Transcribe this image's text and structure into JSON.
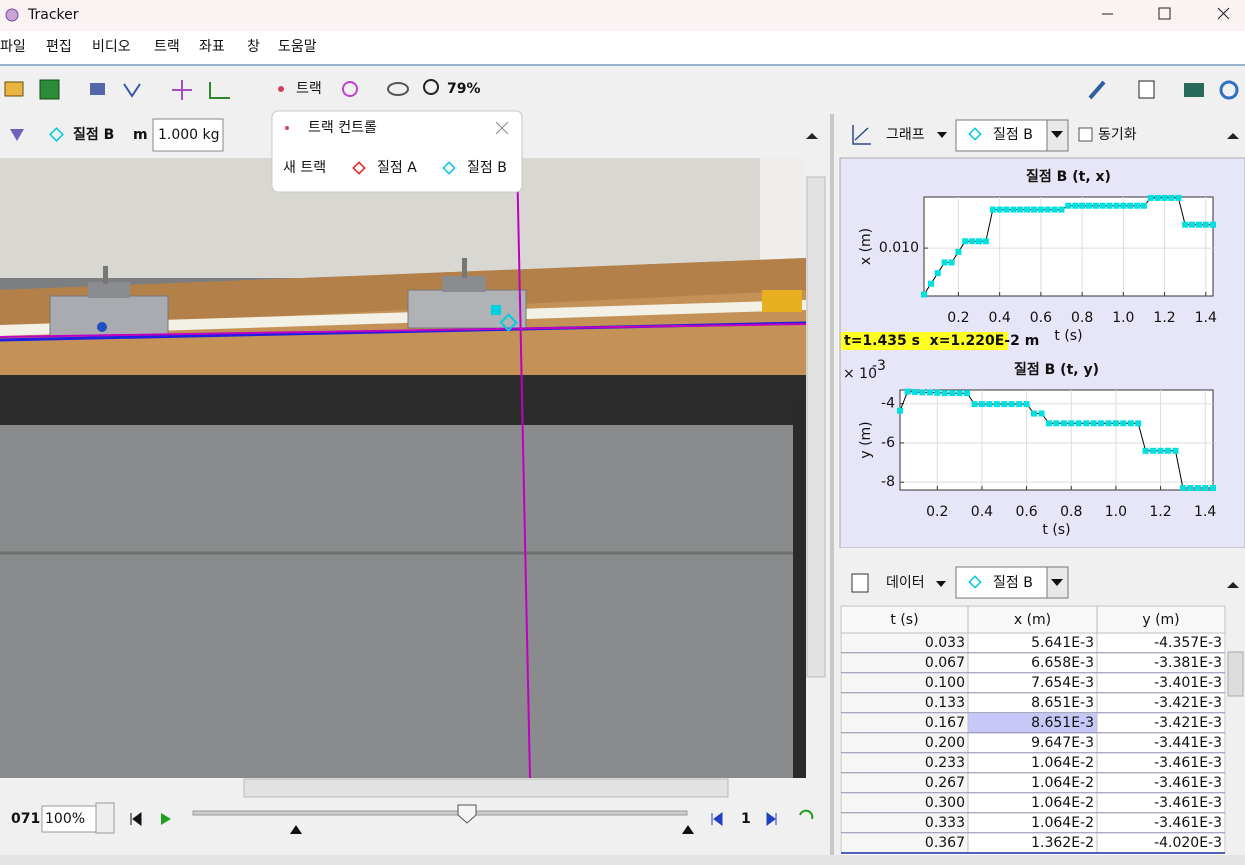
{
  "window": {
    "title": "Tracker"
  },
  "menu": [
    "파일",
    "편집",
    "비디오",
    "트랙",
    "좌표",
    "창",
    "도움말"
  ],
  "toolbar": {
    "track_button": "트랙",
    "zoom": "79%"
  },
  "track_bar": {
    "track": "질점 B",
    "mass_label": "m",
    "mass": "1.000 kg"
  },
  "track_control": {
    "title": "트랙 컨트롤",
    "new_track": "새 트랙",
    "tracks": [
      "질점 A",
      "질점 B"
    ]
  },
  "player": {
    "frame": "071",
    "rate": "100%",
    "step": "1"
  },
  "graph_panel": {
    "label": "그래프",
    "track": "질점 B",
    "sync": "동기화",
    "readout": "t=1.435 s  x=1.220E-2 m",
    "charts": [
      {
        "type": "line",
        "title": "질점 B (t, x)",
        "x_label": "t (s)",
        "y_label": "x (m)",
        "color": "#00e0e0",
        "t": [
          0.033,
          0.067,
          0.1,
          0.133,
          0.167,
          0.2,
          0.233,
          0.267,
          0.3,
          0.333,
          0.367,
          0.4,
          0.433,
          0.467,
          0.5,
          0.533,
          0.567,
          0.6,
          0.633,
          0.667,
          0.7,
          0.733,
          0.767,
          0.8,
          0.833,
          0.867,
          0.9,
          0.933,
          0.967,
          1.0,
          1.033,
          1.067,
          1.1,
          1.133,
          1.167,
          1.2,
          1.233,
          1.267,
          1.3,
          1.333,
          1.367,
          1.4,
          1.435
        ],
        "values": [
          0.005641,
          0.006658,
          0.007654,
          0.008651,
          0.008651,
          0.009647,
          0.01064,
          0.01064,
          0.01064,
          0.01064,
          0.01362,
          0.01362,
          0.01362,
          0.01362,
          0.01362,
          0.01362,
          0.01362,
          0.01362,
          0.01362,
          0.01362,
          0.01362,
          0.01398,
          0.01398,
          0.01398,
          0.01398,
          0.01398,
          0.01398,
          0.01398,
          0.01398,
          0.01398,
          0.01398,
          0.01398,
          0.01398,
          0.01471,
          0.01471,
          0.01471,
          0.01471,
          0.01471,
          0.0122,
          0.0122,
          0.0122,
          0.0122,
          0.0122
        ],
        "xlim": [
          0.033,
          1.435
        ],
        "ylim": [
          0.0055,
          0.0148
        ],
        "xticks": [
          0.2,
          0.4,
          0.6,
          0.8,
          {
            "value": 1,
            "label": "1.0"
          },
          1.2,
          1.4
        ],
        "yticks": [
          {
            "value": 0.01,
            "label": "0.010"
          }
        ],
        "grid": true
      },
      {
        "type": "line",
        "title": "질점 B (t, y)",
        "x_label": "t (s)",
        "y_label": "y (m)",
        "multiplier": "× 10",
        "exponent": "-3",
        "color": "#00e0e0",
        "t": [
          0.033,
          0.067,
          0.1,
          0.133,
          0.167,
          0.2,
          0.233,
          0.267,
          0.3,
          0.333,
          0.367,
          0.4,
          0.433,
          0.467,
          0.5,
          0.533,
          0.567,
          0.6,
          0.633,
          0.667,
          0.7,
          0.733,
          0.767,
          0.8,
          0.833,
          0.867,
          0.9,
          0.933,
          0.967,
          1.0,
          1.033,
          1.067,
          1.1,
          1.133,
          1.167,
          1.2,
          1.233,
          1.267,
          1.3,
          1.333,
          1.367,
          1.4,
          1.435
        ],
        "values": [
          -4.357,
          -3.381,
          -3.401,
          -3.421,
          -3.421,
          -3.441,
          -3.461,
          -3.461,
          -3.461,
          -3.461,
          -4.02,
          -4.02,
          -4.02,
          -4.02,
          -4.02,
          -4.02,
          -4.02,
          -4.02,
          -4.5,
          -4.5,
          -5.0,
          -5.0,
          -5.0,
          -5.0,
          -5.0,
          -5.0,
          -5.0,
          -5.0,
          -5.0,
          -5.0,
          -5.0,
          -5.0,
          -5.0,
          -6.4,
          -6.4,
          -6.4,
          -6.4,
          -6.4,
          -8.3,
          -8.3,
          -8.3,
          -8.3,
          -8.3
        ],
        "xlim": [
          0.033,
          1.435
        ],
        "ylim": [
          -8.4,
          -3.3
        ],
        "xticks": [
          0.2,
          0.4,
          0.6,
          0.8,
          {
            "value": 1,
            "label": "1.0"
          },
          1.2,
          1.4
        ],
        "yticks": [
          -4,
          -6,
          -8
        ],
        "grid": true
      }
    ]
  },
  "data_panel": {
    "label": "데이터",
    "track": "질점 B",
    "columns": [
      "t (s)",
      "x (m)",
      "y (m)"
    ],
    "rows": [
      [
        "0.033",
        "5.641E-3",
        "-4.357E-3"
      ],
      [
        "0.067",
        "6.658E-3",
        "-3.381E-3"
      ],
      [
        "0.100",
        "7.654E-3",
        "-3.401E-3"
      ],
      [
        "0.133",
        "8.651E-3",
        "-3.421E-3"
      ],
      [
        "0.167",
        "8.651E-3",
        "-3.421E-3"
      ],
      [
        "0.200",
        "9.647E-3",
        "-3.441E-3"
      ],
      [
        "0.233",
        "1.064E-2",
        "-3.461E-3"
      ],
      [
        "0.267",
        "1.064E-2",
        "-3.461E-3"
      ],
      [
        "0.300",
        "1.064E-2",
        "-3.461E-3"
      ],
      [
        "0.333",
        "1.064E-2",
        "-3.461E-3"
      ],
      [
        "0.367",
        "1.362E-2",
        "-4.020E-3"
      ]
    ]
  }
}
